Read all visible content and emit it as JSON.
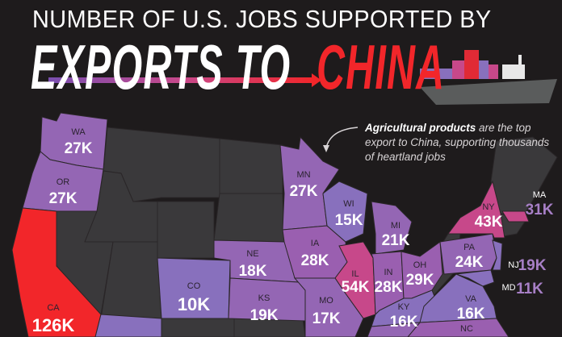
{
  "header": {
    "subtitle": "NUMBER OF U.S. JOBS SUPPORTED BY",
    "title_part1": "EXPORTS TO",
    "title_part2": "CHINA"
  },
  "annotation": {
    "bold": "Agricultural products",
    "text": " are the top export to China, supporting thousands of heartland jobs"
  },
  "colors": {
    "background": "#1e1b1c",
    "highlight_red": "#f2262a",
    "pink": "#c7488a",
    "purple": "#9466b4",
    "blue_purple": "#8870bd",
    "no_data": "#3a393b"
  },
  "states": {
    "WA": {
      "abbr": "WA",
      "value": "27K"
    },
    "OR": {
      "abbr": "OR",
      "value": "27K"
    },
    "CA": {
      "abbr": "CA",
      "value": "126K"
    },
    "CO": {
      "abbr": "CO",
      "value": "10K"
    },
    "NE": {
      "abbr": "NE",
      "value": "18K"
    },
    "KS": {
      "abbr": "KS",
      "value": "19K"
    },
    "MN": {
      "abbr": "MN",
      "value": "27K"
    },
    "IA": {
      "abbr": "IA",
      "value": "28K"
    },
    "WI": {
      "abbr": "WI",
      "value": "15K"
    },
    "IL": {
      "abbr": "IL",
      "value": "54K"
    },
    "MO": {
      "abbr": "MO",
      "value": "17K"
    },
    "MI": {
      "abbr": "MI",
      "value": "21K"
    },
    "IN": {
      "abbr": "IN",
      "value": "28K"
    },
    "OH": {
      "abbr": "OH",
      "value": "29K"
    },
    "KY": {
      "abbr": "KY",
      "value": "16K"
    },
    "PA": {
      "abbr": "PA",
      "value": "24K"
    },
    "NY": {
      "abbr": "NY",
      "value": "43K"
    },
    "VA": {
      "abbr": "VA",
      "value": "16K"
    },
    "NC": {
      "abbr": "NC"
    },
    "MA": {
      "abbr": "MA",
      "value": "31K"
    },
    "NJ": {
      "abbr": "NJ",
      "value": "19K"
    },
    "MD": {
      "abbr": "MD",
      "value": "11K"
    }
  }
}
